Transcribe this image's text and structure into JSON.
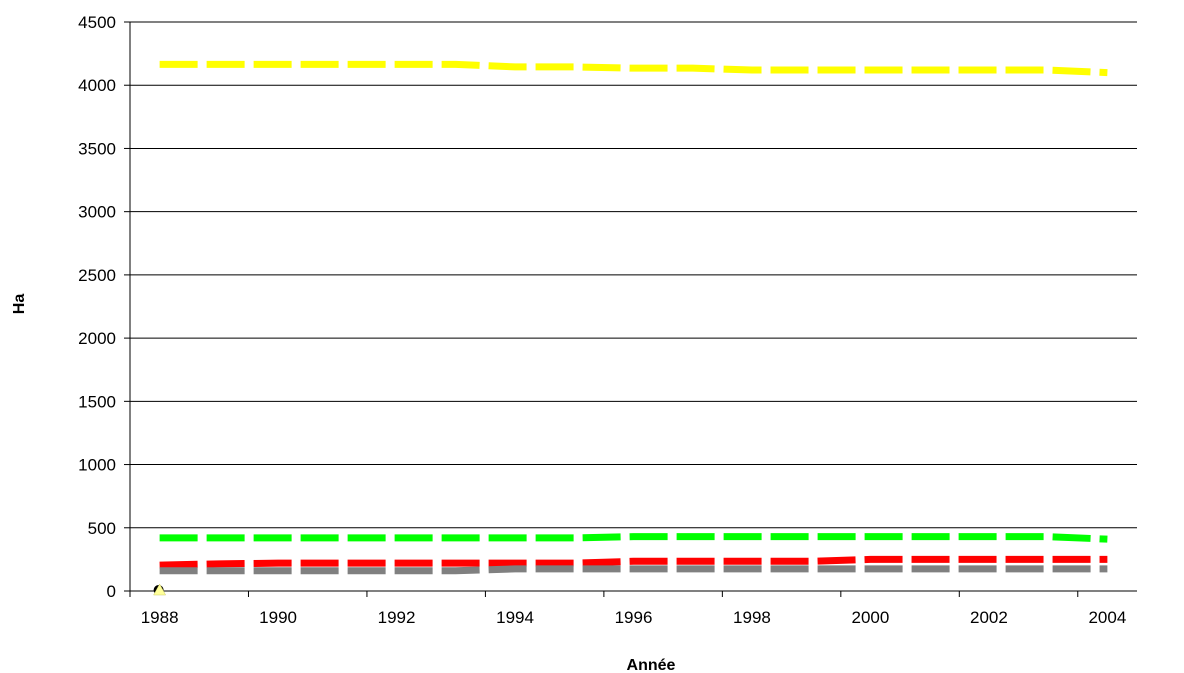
{
  "chart_data": {
    "type": "line",
    "title": "",
    "xlabel": "Année",
    "ylabel": "Ha",
    "x": [
      1988,
      1989,
      1990,
      1991,
      1992,
      1993,
      1994,
      1995,
      1996,
      1997,
      1998,
      1999,
      2000,
      2001,
      2002,
      2003,
      2004
    ],
    "xticks": [
      1988,
      1990,
      1992,
      1994,
      1996,
      1998,
      2000,
      2002,
      2004
    ],
    "ylim": [
      0,
      4500
    ],
    "yticks": [
      0,
      500,
      1000,
      1500,
      2000,
      2500,
      3000,
      3500,
      4000,
      4500
    ],
    "grid": "horizontal",
    "legend": "none",
    "series": [
      {
        "color": "#ffff00",
        "values": [
          4165,
          4165,
          4165,
          4165,
          4165,
          4165,
          4145,
          4145,
          4135,
          4135,
          4120,
          4120,
          4120,
          4120,
          4120,
          4120,
          4100
        ]
      },
      {
        "color": "#00ff00",
        "values": [
          420,
          420,
          420,
          420,
          420,
          420,
          420,
          420,
          430,
          430,
          430,
          430,
          430,
          430,
          430,
          430,
          410
        ]
      },
      {
        "color": "#ff0000",
        "values": [
          205,
          215,
          220,
          220,
          220,
          220,
          220,
          220,
          235,
          235,
          235,
          235,
          250,
          250,
          250,
          250,
          250
        ]
      },
      {
        "color": "#808080",
        "values": [
          160,
          160,
          160,
          160,
          160,
          160,
          175,
          175,
          175,
          175,
          175,
          175,
          175,
          175,
          175,
          175,
          175
        ]
      }
    ],
    "markers": [
      {
        "x": 1988,
        "y": 0,
        "color": "#000000"
      },
      {
        "x": 1988,
        "y": 0,
        "color": "#ffff99"
      }
    ]
  }
}
